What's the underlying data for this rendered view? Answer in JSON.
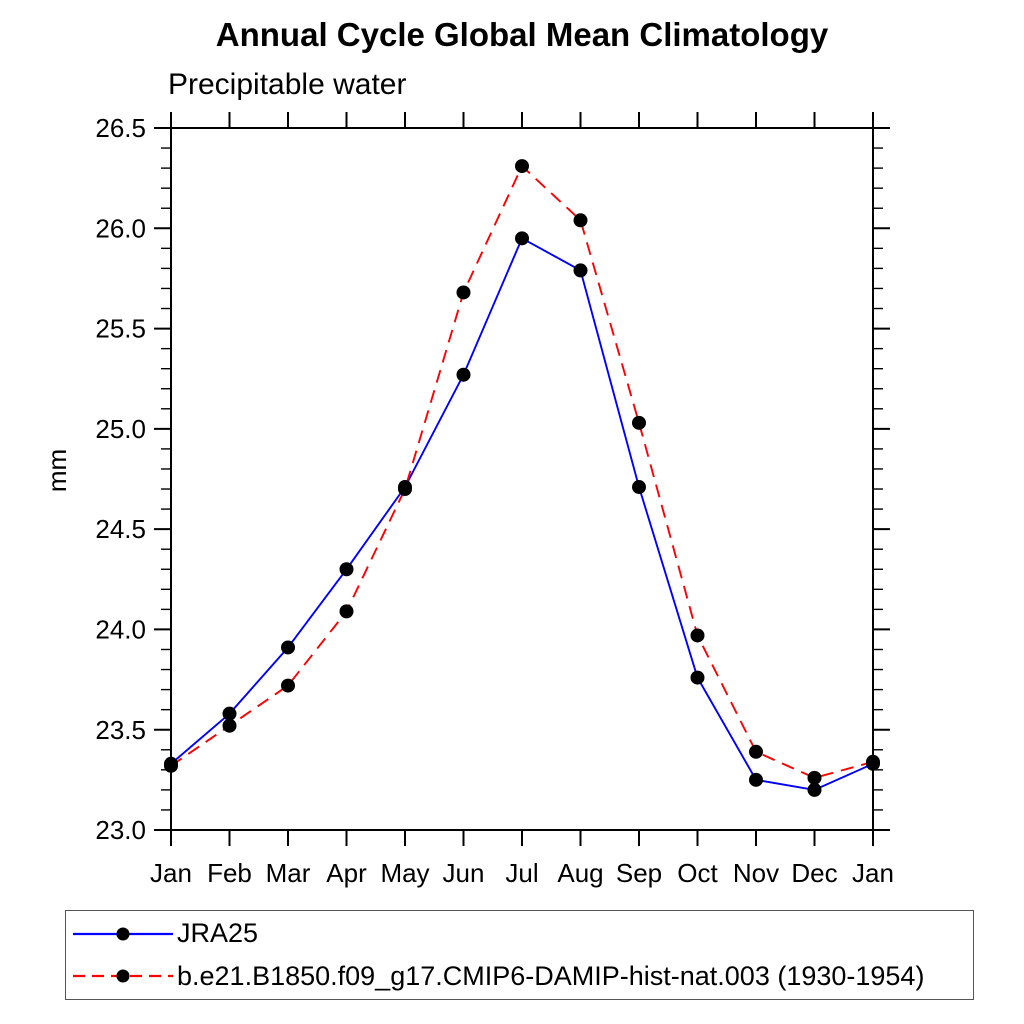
{
  "chart_data": {
    "type": "line",
    "title": "Annual Cycle Global Mean Climatology",
    "subtitle": "Precipitable water",
    "ylabel": "mm",
    "xlabel": "",
    "categories": [
      "Jan",
      "Feb",
      "Mar",
      "Apr",
      "May",
      "Jun",
      "Jul",
      "Aug",
      "Sep",
      "Oct",
      "Nov",
      "Dec",
      "Jan"
    ],
    "ylim": [
      23.0,
      26.5
    ],
    "y_major_step": 0.5,
    "y_minor_step": 0.1,
    "y_tick_labels": [
      "23.0",
      "23.5",
      "24.0",
      "24.5",
      "25.0",
      "25.5",
      "26.0",
      "26.5"
    ],
    "grid": false,
    "legend_position": "bottom-left",
    "marker": "filled-circle",
    "marker_color": "#000000",
    "axis_color": "#000000",
    "series": [
      {
        "name": "JRA25",
        "color": "#0000ff",
        "line_style": "solid",
        "values": [
          23.33,
          23.58,
          23.91,
          24.3,
          24.71,
          25.27,
          25.95,
          25.79,
          24.71,
          23.76,
          23.25,
          23.2,
          23.33
        ]
      },
      {
        "name": "b.e21.B1850.f09_g17.CMIP6-DAMIP-hist-nat.003 (1930-1954)",
        "color": "#ff0000",
        "line_style": "dashed",
        "values": [
          23.32,
          23.52,
          23.72,
          24.09,
          24.7,
          25.68,
          26.31,
          26.04,
          25.03,
          23.97,
          23.39,
          23.26,
          23.34
        ]
      }
    ]
  }
}
